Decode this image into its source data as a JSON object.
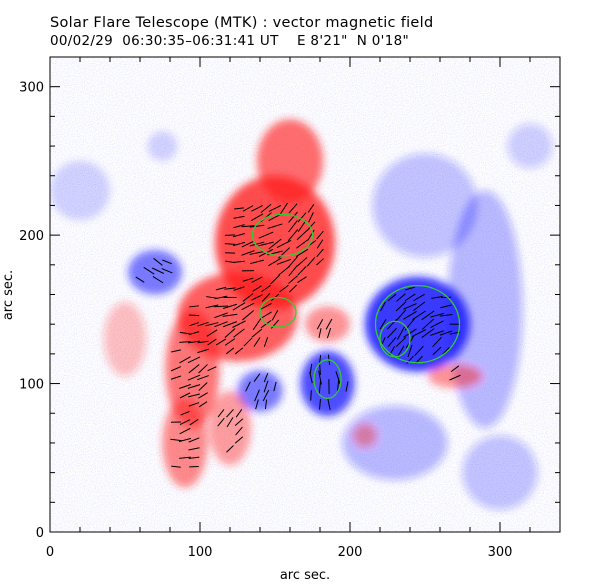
{
  "chart_data": {
    "type": "heatmap",
    "title": "Solar Flare Telescope (MTK) : vector magnetic field",
    "subtitle": "00/02/29  06:30:35–06:31:41 UT    E 8'21\"  N 0'18\"",
    "xlabel": "arc sec.",
    "ylabel": "arc sec.",
    "xlim": [
      0,
      340
    ],
    "ylim": [
      0,
      320
    ],
    "x_ticks": [
      0,
      100,
      200,
      300
    ],
    "y_ticks": [
      0,
      100,
      200,
      300
    ],
    "grid": false,
    "colors": {
      "positive": "#ff2020",
      "negative": "#1a1aff",
      "contour": "#33cc33",
      "vectors": "#000000"
    },
    "positive_regions": [
      {
        "x": 150,
        "y": 195,
        "rx": 40,
        "ry": 45,
        "strength": 1.0
      },
      {
        "x": 160,
        "y": 250,
        "rx": 22,
        "ry": 28,
        "strength": 0.8
      },
      {
        "x": 125,
        "y": 145,
        "rx": 40,
        "ry": 30,
        "strength": 0.9
      },
      {
        "x": 95,
        "y": 110,
        "rx": 18,
        "ry": 40,
        "strength": 0.75
      },
      {
        "x": 90,
        "y": 60,
        "rx": 15,
        "ry": 30,
        "strength": 0.65
      },
      {
        "x": 120,
        "y": 70,
        "rx": 14,
        "ry": 25,
        "strength": 0.55
      },
      {
        "x": 185,
        "y": 140,
        "rx": 15,
        "ry": 12,
        "strength": 0.6
      },
      {
        "x": 50,
        "y": 130,
        "rx": 14,
        "ry": 25,
        "strength": 0.35
      },
      {
        "x": 270,
        "y": 105,
        "rx": 18,
        "ry": 8,
        "strength": 0.6
      },
      {
        "x": 210,
        "y": 65,
        "rx": 8,
        "ry": 8,
        "strength": 0.5
      }
    ],
    "negative_regions": [
      {
        "x": 245,
        "y": 140,
        "rx": 35,
        "ry": 32,
        "strength": 1.0
      },
      {
        "x": 185,
        "y": 100,
        "rx": 18,
        "ry": 22,
        "strength": 0.9
      },
      {
        "x": 140,
        "y": 95,
        "rx": 15,
        "ry": 14,
        "strength": 0.7
      },
      {
        "x": 70,
        "y": 175,
        "rx": 18,
        "ry": 15,
        "strength": 0.7
      },
      {
        "x": 290,
        "y": 150,
        "rx": 25,
        "ry": 80,
        "strength": 0.35
      },
      {
        "x": 250,
        "y": 220,
        "rx": 35,
        "ry": 35,
        "strength": 0.3
      },
      {
        "x": 230,
        "y": 60,
        "rx": 35,
        "ry": 25,
        "strength": 0.35
      },
      {
        "x": 300,
        "y": 40,
        "rx": 25,
        "ry": 25,
        "strength": 0.3
      },
      {
        "x": 20,
        "y": 230,
        "rx": 20,
        "ry": 20,
        "strength": 0.2
      },
      {
        "x": 75,
        "y": 260,
        "rx": 10,
        "ry": 10,
        "strength": 0.2
      },
      {
        "x": 320,
        "y": 260,
        "rx": 15,
        "ry": 15,
        "strength": 0.25
      }
    ],
    "contours": [
      {
        "x": 155,
        "y": 200,
        "rx": 20,
        "ry": 14
      },
      {
        "x": 152,
        "y": 148,
        "rx": 12,
        "ry": 10
      },
      {
        "x": 245,
        "y": 140,
        "rx": 28,
        "ry": 26
      },
      {
        "x": 230,
        "y": 130,
        "rx": 10,
        "ry": 12
      },
      {
        "x": 185,
        "y": 103,
        "rx": 9,
        "ry": 13
      }
    ],
    "vector_region": {
      "x": [
        60,
        280
      ],
      "y": [
        20,
        220
      ]
    }
  }
}
